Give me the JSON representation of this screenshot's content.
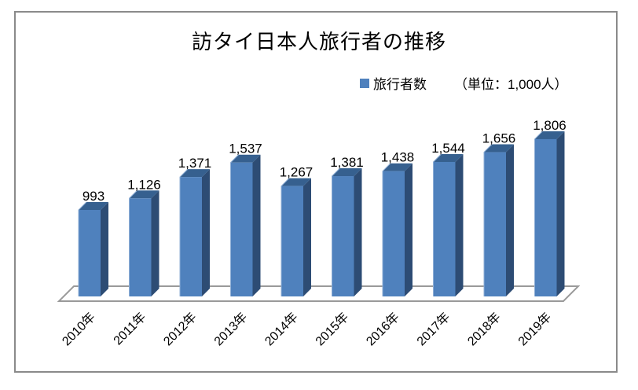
{
  "window": {
    "background": "#ffffff",
    "border_color": "#8a8a8a"
  },
  "chart_data": {
    "type": "bar",
    "style": "3d-column",
    "title": "訪タイ日本人旅行者の推移",
    "legend": {
      "label": "旅行者数",
      "position": "top-right",
      "marker_color": "#4f81bd"
    },
    "annotation": "（単位：1,000人）",
    "categories": [
      "2010年",
      "2011年",
      "2012年",
      "2013年",
      "2014年",
      "2015年",
      "2016年",
      "2017年",
      "2018年",
      "2019年"
    ],
    "series": [
      {
        "name": "旅行者数",
        "values": [
          993,
          1126,
          1371,
          1537,
          1267,
          1381,
          1438,
          1544,
          1656,
          1806
        ],
        "labels": [
          "993",
          "1,126",
          "1,371",
          "1,537",
          "1,267",
          "1,381",
          "1,438",
          "1,544",
          "1,656",
          "1,806"
        ]
      }
    ],
    "xlabel": "",
    "ylabel": "",
    "axes": {
      "y_axis_visible": false,
      "gridlines": false,
      "x_labels_rotation": -45,
      "data_labels": "above-bars"
    },
    "bar_colors": {
      "front": "#4f81bd",
      "top": "#36608f",
      "side": "#2d4c74",
      "edge_highlight": "#8fafd6"
    },
    "floor_stroke": "#9a9a9a"
  }
}
